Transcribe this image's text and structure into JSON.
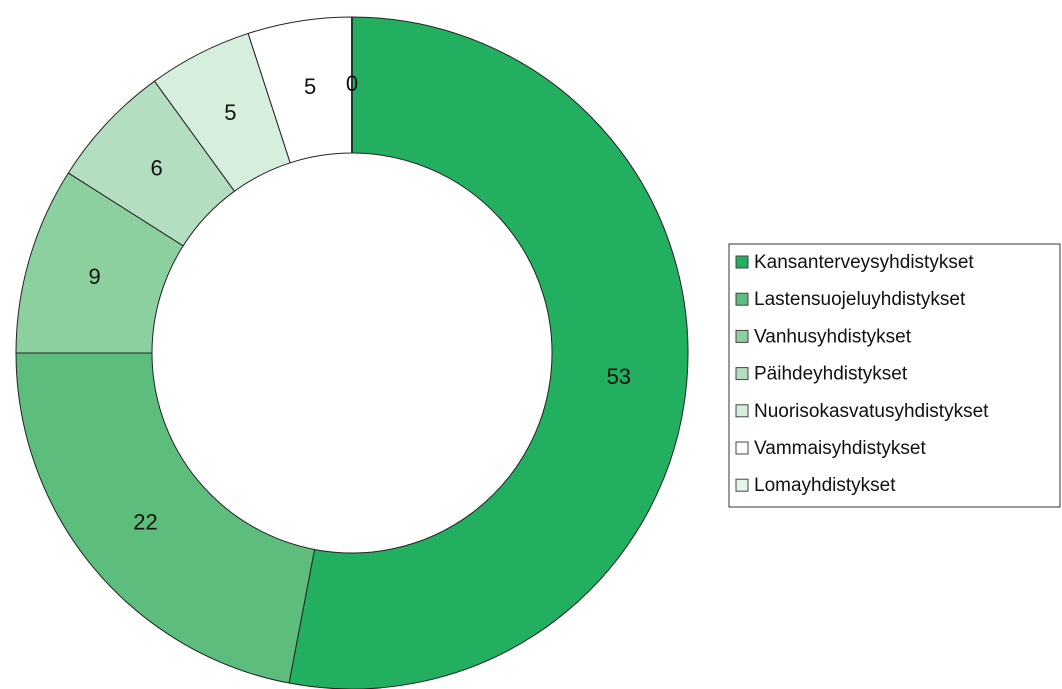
{
  "chart_data": {
    "type": "donut",
    "categories": [
      "Kansanterveysyhdistykset",
      "Lastensuojeluyhdistykset",
      "Vanhusyhdistykset",
      "Päihdeyhdistykset",
      "Nuorisokasvatusyhdistykset",
      "Vammaisyhdistykset",
      "Lomayhdistykset"
    ],
    "values": [
      53,
      22,
      9,
      6,
      5,
      5,
      0
    ],
    "colors": [
      "#22b060",
      "#5cbd7c",
      "#8dd0a0",
      "#b3dfc0",
      "#d6eedc",
      "#ffffff",
      "#e6f4ea"
    ],
    "legend": "right"
  }
}
